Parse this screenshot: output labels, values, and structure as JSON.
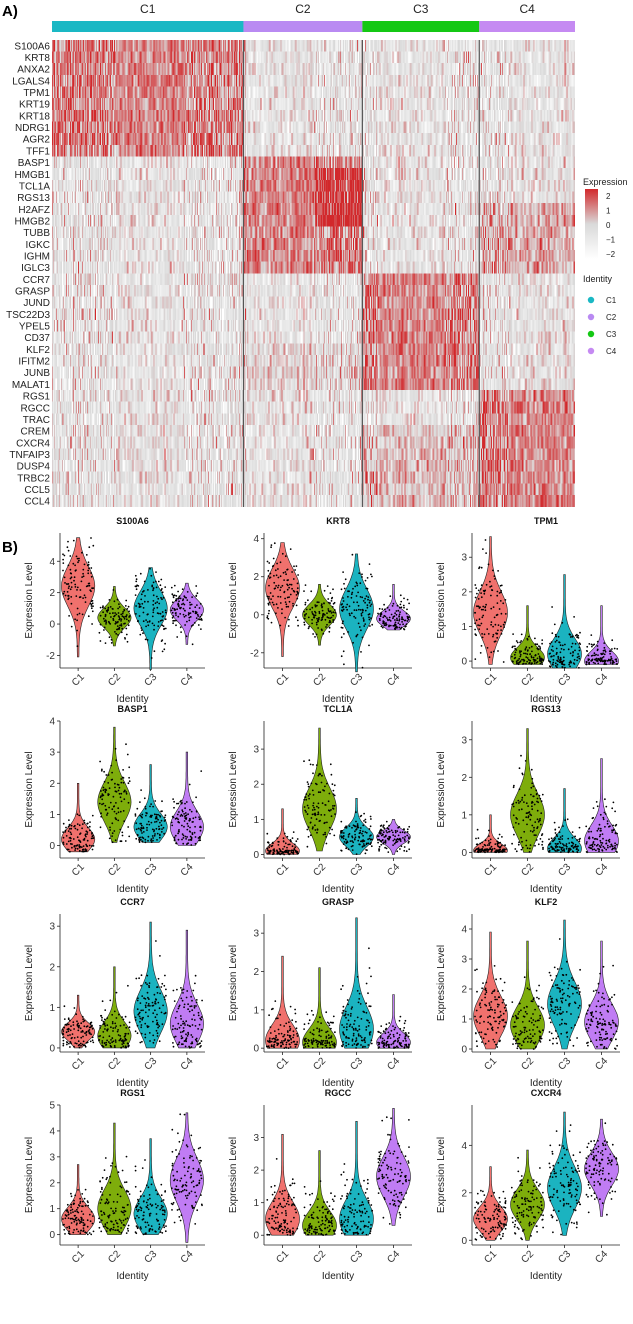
{
  "panel_labels": {
    "a": "A)",
    "b": "B)"
  },
  "heatmap": {
    "clusters": [
      {
        "name": "C1",
        "color": "#1ab8c4",
        "cells": 190
      },
      {
        "name": "C2",
        "color": "#b98af2",
        "cells": 118
      },
      {
        "name": "C3",
        "color": "#14c814",
        "cells": 116
      },
      {
        "name": "C4",
        "color": "#c58af2",
        "cells": 95
      }
    ],
    "genes": [
      "S100A6",
      "KRT8",
      "ANXA2",
      "LGALS4",
      "TPM1",
      "KRT19",
      "KRT18",
      "NDRG1",
      "AGR2",
      "TFF1",
      "BASP1",
      "HMGB1",
      "TCL1A",
      "RGS13",
      "H2AFZ",
      "HMGB2",
      "TUBB",
      "IGKC",
      "IGHM",
      "IGLC3",
      "CCR7",
      "GRASP",
      "JUND",
      "TSC22D3",
      "YPEL5",
      "CD37",
      "KLF2",
      "IFITM2",
      "JUNB",
      "MALAT1",
      "RGS1",
      "RGCC",
      "TRAC",
      "CREM",
      "CXCR4",
      "TNFAIP3",
      "DUSP4",
      "TRBC2",
      "CCL5",
      "CCL4"
    ],
    "gene_block_cluster": [
      0,
      0,
      0,
      0,
      0,
      0,
      0,
      0,
      0,
      0,
      1,
      1,
      1,
      1,
      1,
      1,
      1,
      1,
      1,
      1,
      2,
      2,
      2,
      2,
      2,
      2,
      2,
      2,
      2,
      2,
      3,
      3,
      3,
      3,
      3,
      3,
      3,
      3,
      3,
      3
    ],
    "color_scale": {
      "low": "#ffffff",
      "mid": "#d9d9d9",
      "high": "#d2282b",
      "range": [
        -2.5,
        2.5
      ]
    },
    "legend": {
      "expression_title": "Expression",
      "expression_ticks": [
        "2",
        "1",
        "0",
        "−1",
        "−2"
      ],
      "identity_title": "Identity",
      "identity_entries": [
        "C1",
        "C2",
        "C3",
        "C4"
      ]
    }
  },
  "violin_common": {
    "categories": [
      "C1",
      "C2",
      "C3",
      "C4"
    ],
    "colors": [
      "#f0716d",
      "#7ead0b",
      "#1bb3c0",
      "#c07cf4"
    ],
    "xlabel": "Identity",
    "ylabel": "Expression Level"
  },
  "chart_data": [
    {
      "type": "violin",
      "title": "S100A6",
      "ylim": [
        -2.8,
        5.8
      ],
      "yticks": [
        "-2",
        "0",
        "2",
        "4"
      ],
      "series": [
        {
          "name": "C1",
          "median": 2.4,
          "min": -2.1,
          "max": 5.5
        },
        {
          "name": "C2",
          "median": 0.4,
          "min": -1.4,
          "max": 2.4
        },
        {
          "name": "C3",
          "median": 1.0,
          "min": -2.9,
          "max": 3.6
        },
        {
          "name": "C4",
          "median": 0.9,
          "min": -1.3,
          "max": 2.6
        }
      ]
    },
    {
      "type": "violin",
      "title": "KRT8",
      "ylim": [
        -2.8,
        4.3
      ],
      "yticks": [
        "-2",
        "0",
        "2",
        "4"
      ],
      "series": [
        {
          "name": "C1",
          "median": 1.4,
          "min": -2.2,
          "max": 3.8
        },
        {
          "name": "C2",
          "median": 0.0,
          "min": -1.6,
          "max": 1.6
        },
        {
          "name": "C3",
          "median": 0.3,
          "min": -3.0,
          "max": 3.2
        },
        {
          "name": "C4",
          "median": -0.2,
          "min": -0.8,
          "max": 1.6
        }
      ]
    },
    {
      "type": "violin",
      "title": "TPM1",
      "ylim": [
        -0.2,
        3.7
      ],
      "yticks": [
        "0",
        "1",
        "2",
        "3"
      ],
      "series": [
        {
          "name": "C1",
          "median": 1.4,
          "min": -0.1,
          "max": 3.6
        },
        {
          "name": "C2",
          "median": 0.1,
          "min": -0.1,
          "max": 1.6
        },
        {
          "name": "C3",
          "median": 0.2,
          "min": -0.2,
          "max": 2.5
        },
        {
          "name": "C4",
          "median": 0.0,
          "min": -0.1,
          "max": 1.6
        }
      ]
    },
    {
      "type": "violin",
      "title": "BASP1",
      "ylim": [
        -0.4,
        4.0
      ],
      "yticks": [
        "0",
        "1",
        "2",
        "3",
        "4"
      ],
      "series": [
        {
          "name": "C1",
          "median": 0.2,
          "min": -0.2,
          "max": 2.0
        },
        {
          "name": "C2",
          "median": 1.4,
          "min": 0.1,
          "max": 3.8
        },
        {
          "name": "C3",
          "median": 0.6,
          "min": 0.1,
          "max": 2.6
        },
        {
          "name": "C4",
          "median": 0.6,
          "min": 0.0,
          "max": 3.0
        }
      ]
    },
    {
      "type": "violin",
      "title": "TCL1A",
      "ylim": [
        -0.1,
        3.8
      ],
      "yticks": [
        "0",
        "1",
        "2",
        "3"
      ],
      "series": [
        {
          "name": "C1",
          "median": 0.1,
          "min": 0.0,
          "max": 1.3
        },
        {
          "name": "C2",
          "median": 1.3,
          "min": 0.1,
          "max": 3.6
        },
        {
          "name": "C3",
          "median": 0.5,
          "min": 0.0,
          "max": 1.6
        },
        {
          "name": "C4",
          "median": 0.5,
          "min": 0.0,
          "max": 1.0
        }
      ]
    },
    {
      "type": "violin",
      "title": "RGS13",
      "ylim": [
        -0.15,
        3.5
      ],
      "yticks": [
        "0",
        "1",
        "2",
        "3"
      ],
      "series": [
        {
          "name": "C1",
          "median": 0.05,
          "min": 0.0,
          "max": 1.0
        },
        {
          "name": "C2",
          "median": 1.0,
          "min": 0.0,
          "max": 3.3
        },
        {
          "name": "C3",
          "median": 0.1,
          "min": 0.0,
          "max": 1.7
        },
        {
          "name": "C4",
          "median": 0.3,
          "min": 0.0,
          "max": 2.5
        }
      ]
    },
    {
      "type": "violin",
      "title": "CCR7",
      "ylim": [
        -0.1,
        3.3
      ],
      "yticks": [
        "0",
        "1",
        "2",
        "3"
      ],
      "series": [
        {
          "name": "C1",
          "median": 0.4,
          "min": 0.0,
          "max": 1.3
        },
        {
          "name": "C2",
          "median": 0.3,
          "min": 0.0,
          "max": 2.0
        },
        {
          "name": "C3",
          "median": 0.9,
          "min": 0.0,
          "max": 3.1
        },
        {
          "name": "C4",
          "median": 0.6,
          "min": 0.0,
          "max": 2.9
        }
      ]
    },
    {
      "type": "violin",
      "title": "GRASP",
      "ylim": [
        -0.1,
        3.5
      ],
      "yticks": [
        "0",
        "1",
        "2",
        "3"
      ],
      "series": [
        {
          "name": "C1",
          "median": 0.2,
          "min": 0.0,
          "max": 2.4
        },
        {
          "name": "C2",
          "median": 0.15,
          "min": 0.0,
          "max": 2.1
        },
        {
          "name": "C3",
          "median": 0.5,
          "min": 0.0,
          "max": 3.4
        },
        {
          "name": "C4",
          "median": 0.15,
          "min": 0.0,
          "max": 1.4
        }
      ]
    },
    {
      "type": "violin",
      "title": "KLF2",
      "ylim": [
        -0.1,
        4.5
      ],
      "yticks": [
        "0",
        "1",
        "2",
        "3",
        "4"
      ],
      "series": [
        {
          "name": "C1",
          "median": 1.1,
          "min": 0.0,
          "max": 3.9
        },
        {
          "name": "C2",
          "median": 0.8,
          "min": 0.0,
          "max": 3.6
        },
        {
          "name": "C3",
          "median": 1.5,
          "min": 0.0,
          "max": 4.3
        },
        {
          "name": "C4",
          "median": 0.9,
          "min": 0.0,
          "max": 3.6
        }
      ]
    },
    {
      "type": "violin",
      "title": "RGS1",
      "ylim": [
        -0.4,
        5.0
      ],
      "yticks": [
        "0",
        "1",
        "2",
        "3",
        "4",
        "5"
      ],
      "series": [
        {
          "name": "C1",
          "median": 0.6,
          "min": 0.0,
          "max": 2.7
        },
        {
          "name": "C2",
          "median": 1.0,
          "min": 0.0,
          "max": 4.3
        },
        {
          "name": "C3",
          "median": 0.8,
          "min": 0.0,
          "max": 3.7
        },
        {
          "name": "C4",
          "median": 2.1,
          "min": -0.3,
          "max": 4.7
        }
      ]
    },
    {
      "type": "violin",
      "title": "RGCC",
      "ylim": [
        -0.3,
        4.0
      ],
      "yticks": [
        "0",
        "1",
        "2",
        "3"
      ],
      "series": [
        {
          "name": "C1",
          "median": 0.5,
          "min": 0.0,
          "max": 3.1
        },
        {
          "name": "C2",
          "median": 0.3,
          "min": 0.0,
          "max": 2.6
        },
        {
          "name": "C3",
          "median": 0.5,
          "min": 0.0,
          "max": 3.5
        },
        {
          "name": "C4",
          "median": 1.8,
          "min": 0.3,
          "max": 3.9
        }
      ]
    },
    {
      "type": "violin",
      "title": "CXCR4",
      "ylim": [
        -0.2,
        5.7
      ],
      "yticks": [
        "0",
        "2",
        "4"
      ],
      "series": [
        {
          "name": "C1",
          "median": 0.9,
          "min": 0.0,
          "max": 3.1
        },
        {
          "name": "C2",
          "median": 1.5,
          "min": 0.0,
          "max": 3.8
        },
        {
          "name": "C3",
          "median": 2.2,
          "min": 0.2,
          "max": 5.4
        },
        {
          "name": "C4",
          "median": 3.0,
          "min": 1.0,
          "max": 5.1
        }
      ]
    }
  ]
}
